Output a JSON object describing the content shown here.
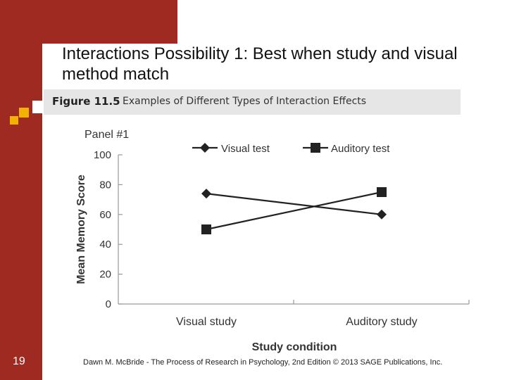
{
  "slide": {
    "title": "Interactions Possibility 1: Best when study and visual method match",
    "number": "19",
    "footer": "Dawn M. McBride - The Process of Research in Psychology, 2nd Edition © 2013 SAGE Publications, Inc.",
    "accent_color": "#9e2a22"
  },
  "figure": {
    "number": "Figure 11.5",
    "caption": "Examples of Different Types of Interaction Effects"
  },
  "chart_data": {
    "type": "line",
    "title": "Panel #1",
    "categories": [
      "Visual study",
      "Auditory study"
    ],
    "xlabel": "Study condition",
    "ylabel": "Mean Memory Score",
    "ylim": [
      0,
      100
    ],
    "yticks": [
      0,
      20,
      40,
      60,
      80,
      100
    ],
    "series": [
      {
        "name": "Visual test",
        "values": [
          74,
          60
        ],
        "marker": "diamond"
      },
      {
        "name": "Auditory test",
        "values": [
          50,
          75
        ],
        "marker": "square"
      }
    ],
    "grid": false,
    "legend_position": "top"
  }
}
